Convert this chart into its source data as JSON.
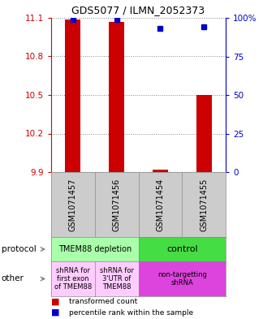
{
  "title": "GDS5077 / ILMN_2052373",
  "samples": [
    "GSM1071457",
    "GSM1071456",
    "GSM1071454",
    "GSM1071455"
  ],
  "red_values": [
    11.09,
    11.07,
    9.92,
    10.5
  ],
  "blue_values": [
    99,
    99,
    93,
    94
  ],
  "ymin": 9.9,
  "ymax": 11.1,
  "yticks_left": [
    9.9,
    10.2,
    10.5,
    10.8,
    11.1
  ],
  "yticks_right": [
    0,
    25,
    50,
    75,
    100
  ],
  "ytick_labels_right": [
    "0",
    "25",
    "50",
    "75",
    "100%"
  ],
  "bar_base": 9.9,
  "protocol_labels": [
    "TMEM88 depletion",
    "control"
  ],
  "protocol_colors": [
    "#aaffaa",
    "#44dd44"
  ],
  "other_labels": [
    "shRNA for\nfirst exon\nof TMEM88",
    "shRNA for\n3'UTR of\nTMEM88",
    "non-targetting\nshRNA"
  ],
  "other_colors_left": "#ffccff",
  "other_color_right": "#dd44dd",
  "red_color": "#cc0000",
  "blue_color": "#0000cc",
  "grid_color": "#888888"
}
